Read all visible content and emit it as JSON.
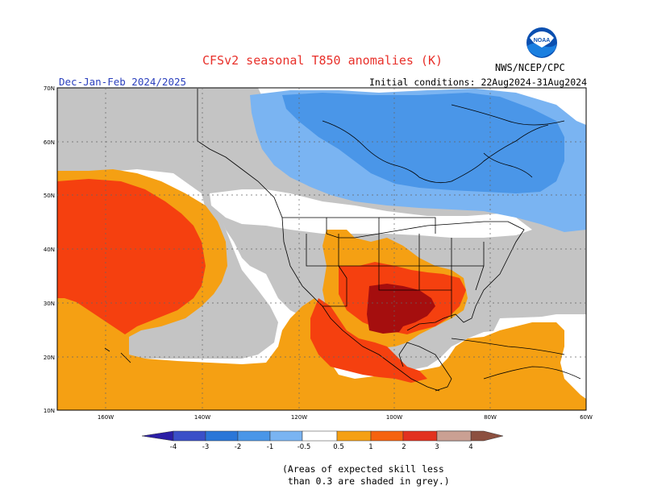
{
  "header": {
    "title": "CFSv2 seasonal T850 anomalies (K)",
    "season": "Dec-Jan-Feb 2024/2025",
    "initial_conditions": "Initial conditions: 22Aug2024-31Aug2024",
    "agency": "NWS/NCEP/CPC",
    "logo_text": "NOAA"
  },
  "map": {
    "lat_labels": [
      "70N",
      "60N",
      "50N",
      "40N",
      "30N",
      "20N",
      "10N"
    ],
    "lon_labels": [
      "160W",
      "140W",
      "120W",
      "100W",
      "80W",
      "60W"
    ],
    "regions": {
      "cold_canada": "Negative anomaly (-0.5 to -1 K, light/medium blue) over Canada and Hudson Bay",
      "warm_pacific": "Positive anomaly (1 to 2 K, red) over NE Pacific",
      "hot_texas": "Positive anomaly (2 to 3 K, dark red) over Texas"
    }
  },
  "legend": {
    "labels": [
      "-4",
      "-3",
      "-2",
      "-1",
      "-0.5",
      "0.5",
      "1",
      "2",
      "3",
      "4"
    ],
    "colors": {
      "n4": "#2b1ea6",
      "n3": "#3a4fc8",
      "n2": "#2a76d8",
      "n1": "#4a96e8",
      "n05": "#7ab4f2",
      "zero": "#ffffff",
      "p05": "#f5a013",
      "p1": "#f5630f",
      "p2": "#e2321f",
      "p3": "#a50e0e",
      "p4": "#caa093",
      "p5": "#8c5040"
    }
  },
  "footnote": "(Areas of expected skill less\n than 0.3 are shaded in grey.)"
}
